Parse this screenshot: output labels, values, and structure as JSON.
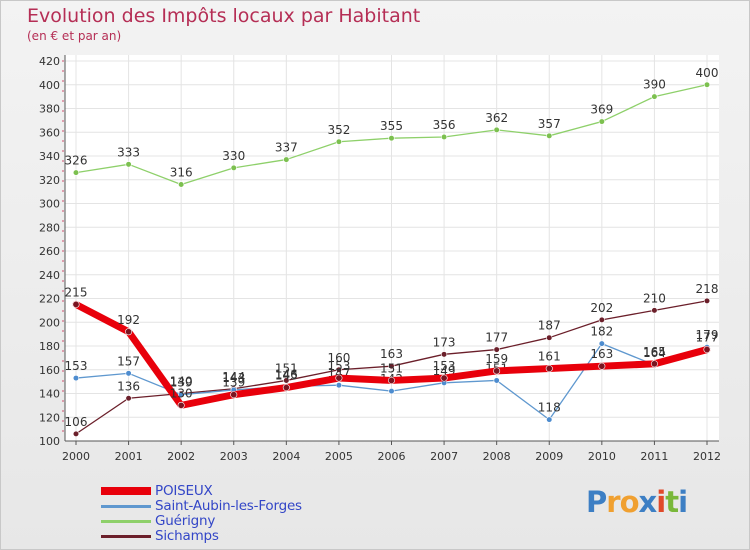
{
  "header": {
    "title": "Evolution des Impôts locaux par Habitant",
    "subtitle": "(en € et par an)"
  },
  "brand": {
    "text": "Proxiti",
    "letter_colors": [
      "#3d7fc4",
      "#f0a030",
      "#f0a030",
      "#3d7fc4",
      "#e04a2a",
      "#7ab83a",
      "#3d7fc4"
    ]
  },
  "chart_data": {
    "type": "line",
    "title": "Evolution des Impôts locaux par Habitant",
    "subtitle": "(en € et par an)",
    "xlabel": "",
    "ylabel": "",
    "x": [
      "2000",
      "2001",
      "2002",
      "2003",
      "2004",
      "2005",
      "2006",
      "2007",
      "2008",
      "2009",
      "2010",
      "2011",
      "2012"
    ],
    "ylim": [
      100,
      420
    ],
    "yticks": [
      100,
      120,
      140,
      160,
      180,
      200,
      220,
      240,
      260,
      280,
      300,
      320,
      340,
      360,
      380,
      400,
      420
    ],
    "grid": true,
    "legend_position": "bottom-left",
    "series": [
      {
        "name": "Sichamps",
        "color": "#6b1f2a",
        "width": 1.3,
        "values": [
          106,
          136,
          140,
          144,
          151,
          160,
          163,
          173,
          177,
          187,
          202,
          210,
          218
        ],
        "labels": [
          "106",
          "136",
          "140",
          "144",
          "151",
          "160",
          "163",
          "173",
          "177",
          "187",
          "202",
          "210",
          "218"
        ]
      },
      {
        "name": "Guérigny",
        "color": "#8ed06a",
        "width": 1.3,
        "values": [
          326,
          333,
          316,
          330,
          337,
          352,
          355,
          356,
          362,
          357,
          369,
          390,
          400
        ],
        "labels": [
          "326",
          "333",
          "316",
          "330",
          "337",
          "352",
          "355",
          "356",
          "362",
          "357",
          "369",
          "390",
          "400"
        ]
      },
      {
        "name": "Saint-Aubin-les-Forges",
        "color": "#5f98cf",
        "width": 1.3,
        "values": [
          153,
          157,
          139,
          143,
          146,
          147,
          142,
          149,
          151,
          118,
          182,
          164,
          179
        ],
        "labels": [
          "153",
          "157",
          "139",
          "143",
          "146",
          "147",
          "142",
          "149",
          "151",
          "118",
          "182",
          "164",
          "179"
        ]
      },
      {
        "name": "POISEUX",
        "color": "#e8000b",
        "width": 7,
        "values": [
          215,
          192,
          130,
          139,
          145,
          153,
          151,
          153,
          159,
          161,
          163,
          165,
          177
        ],
        "labels": [
          "215",
          "192",
          "130",
          "139",
          "145",
          "153",
          "151",
          "153",
          "159",
          "161",
          "163",
          "165",
          "177"
        ]
      }
    ],
    "legend": [
      "POISEUX",
      "Saint-Aubin-les-Forges",
      "Guérigny",
      "Sichamps"
    ]
  }
}
